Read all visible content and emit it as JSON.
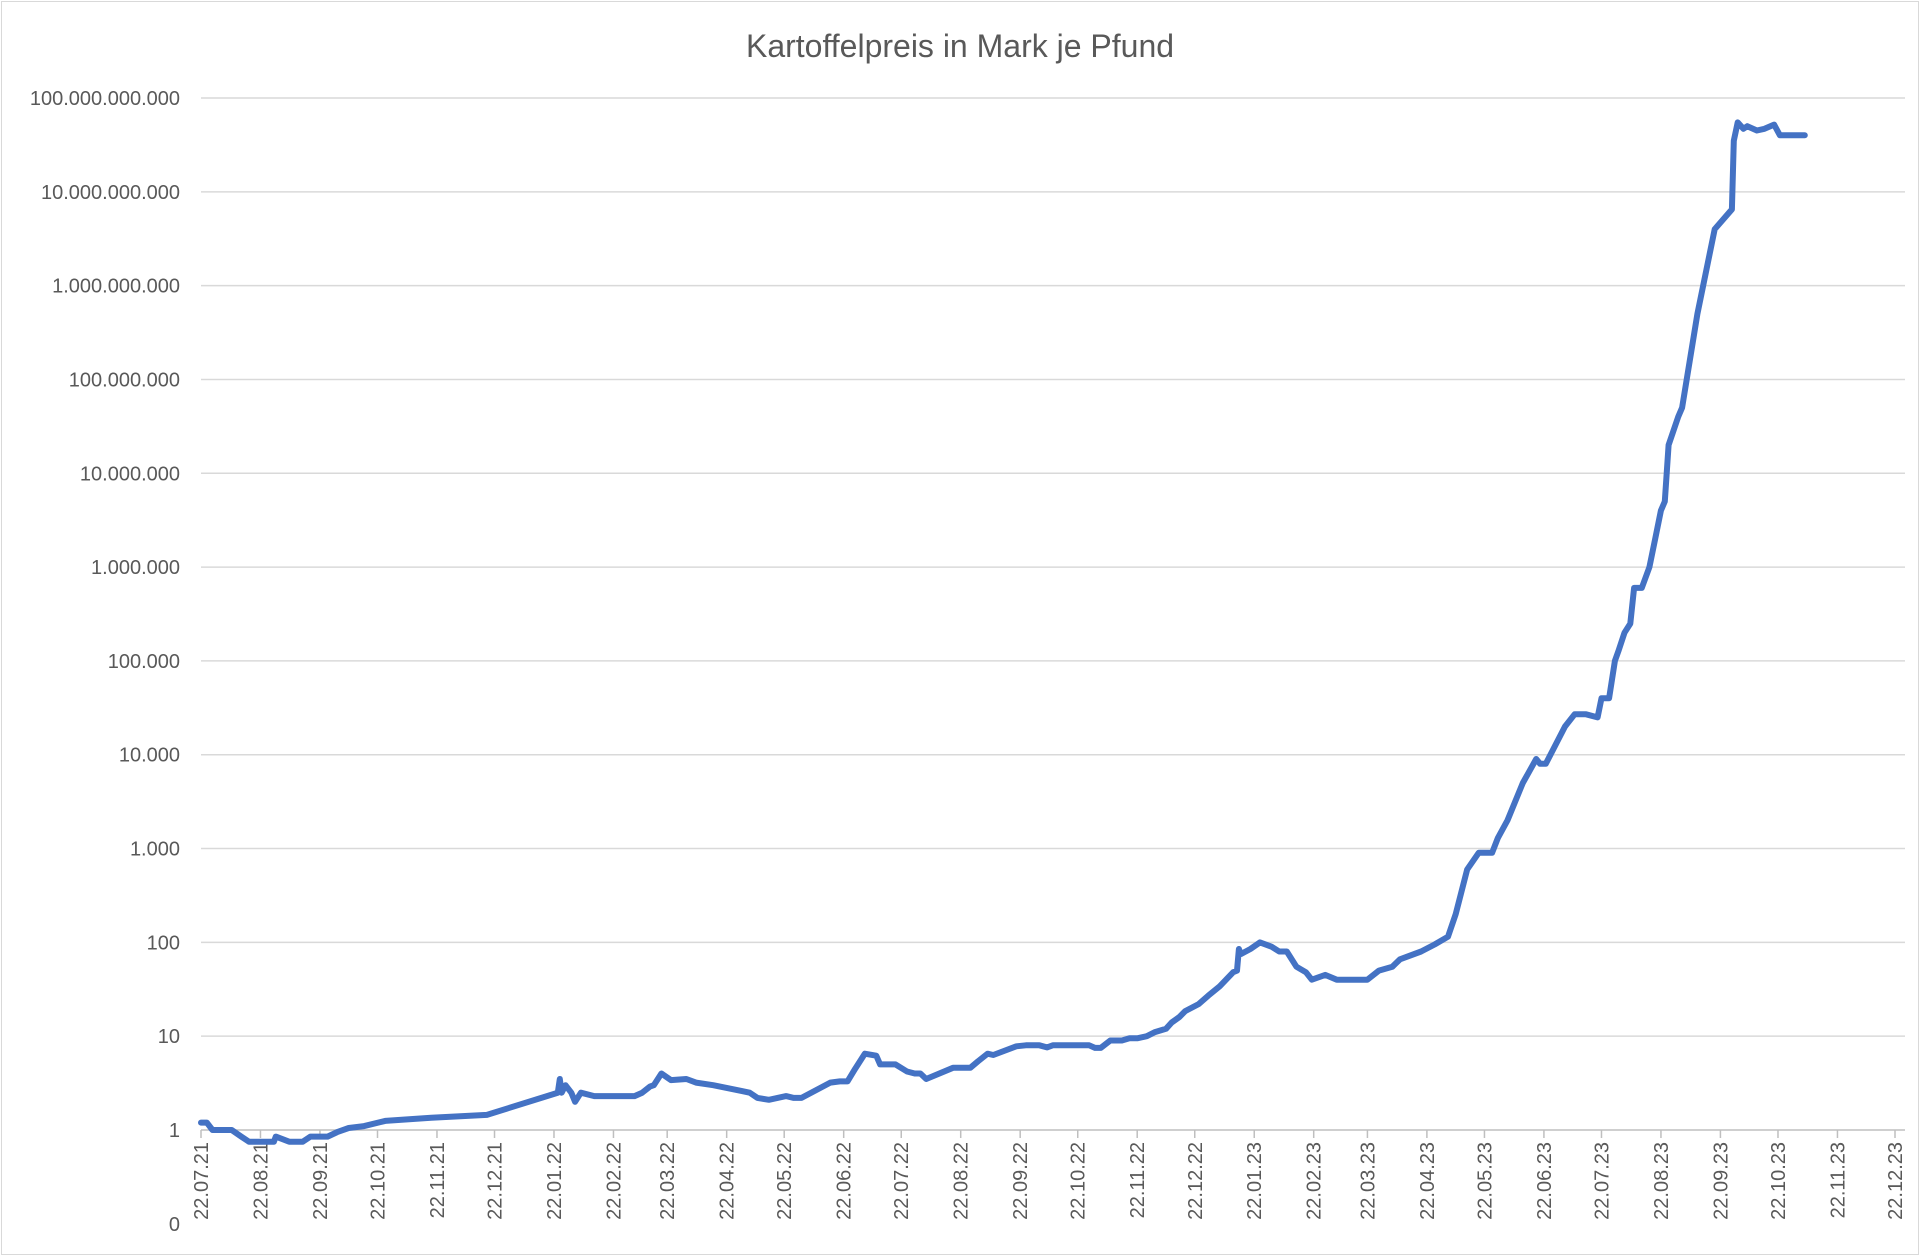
{
  "chart_data": {
    "type": "line",
    "title": "Kartoffelpreis in Mark je Pfund",
    "xlabel": "",
    "ylabel": "",
    "y_scale": "log",
    "ylim": [
      1,
      100000000000
    ],
    "grid": true,
    "legend": "none",
    "colors": {
      "line": "#4472C4",
      "grid": "#D9D9D9",
      "text": "#595959"
    },
    "y_tick_labels": [
      "0",
      "1",
      "10",
      "100",
      "1.000",
      "10.000",
      "100.000",
      "1.000.000",
      "10.000.000",
      "100.000.000",
      "1.000.000.000",
      "10.000.000.000",
      "100.000.000.000"
    ],
    "y_tick_values": [
      null,
      1,
      10,
      100,
      1000,
      10000,
      100000,
      1000000,
      10000000,
      100000000,
      1000000000,
      10000000000,
      100000000000
    ],
    "x_tick_labels": [
      "22.07.21",
      "22.08.21",
      "22.09.21",
      "22.10.21",
      "22.11.21",
      "22.12.21",
      "22.01.22",
      "22.02.22",
      "22.03.22",
      "22.04.22",
      "22.05.22",
      "22.06.22",
      "22.07.22",
      "22.08.22",
      "22.09.22",
      "22.10.22",
      "22.11.22",
      "22.12.22",
      "22.01.23",
      "22.02.23",
      "22.03.23",
      "22.04.23",
      "22.05.23",
      "22.06.23",
      "22.07.23",
      "22.08.23",
      "22.09.23",
      "22.10.23",
      "22.11.23",
      "22.12.23"
    ],
    "series": [
      {
        "points": [
          [
            "22.07.21",
            1.2
          ],
          [
            "25.07.21",
            1.2
          ],
          [
            "28.07.21",
            1.0
          ],
          [
            "07.08.21",
            1.0
          ],
          [
            "12.08.21",
            0.85
          ],
          [
            "16.08.21",
            0.75
          ],
          [
            "20.08.21",
            0.75
          ],
          [
            "25.08.21",
            0.75
          ],
          [
            "29.08.21",
            0.75
          ],
          [
            "30.08.21",
            0.85
          ],
          [
            "06.09.21",
            0.75
          ],
          [
            "13.09.21",
            0.75
          ],
          [
            "17.09.21",
            0.85
          ],
          [
            "26.09.21",
            0.85
          ],
          [
            "01.10.21",
            0.95
          ],
          [
            "07.10.21",
            1.05
          ],
          [
            "15.10.21",
            1.1
          ],
          [
            "26.10.21",
            1.25
          ],
          [
            "19.11.21",
            1.35
          ],
          [
            "18.12.21",
            1.45
          ],
          [
            "24.01.22",
            2.5
          ],
          [
            "25.01.22",
            3.5
          ],
          [
            "26.01.22",
            2.5
          ],
          [
            "28.01.22",
            3.0
          ],
          [
            "31.01.22",
            2.5
          ],
          [
            "02.02.22",
            2.0
          ],
          [
            "05.02.22",
            2.5
          ],
          [
            "12.02.22",
            2.3
          ],
          [
            "19.02.22",
            2.3
          ],
          [
            "05.03.22",
            2.3
          ],
          [
            "09.03.22",
            2.5
          ],
          [
            "13.03.22",
            2.9
          ],
          [
            "15.03.22",
            3.0
          ],
          [
            "19.03.22",
            4.0
          ],
          [
            "24.03.22",
            3.4
          ],
          [
            "01.04.22",
            3.5
          ],
          [
            "06.04.22",
            3.2
          ],
          [
            "15.04.22",
            3.0
          ],
          [
            "30.04.22",
            2.6
          ],
          [
            "04.05.22",
            2.5
          ],
          [
            "08.05.22",
            2.2
          ],
          [
            "14.05.22",
            2.1
          ],
          [
            "23.05.22",
            2.3
          ],
          [
            "27.05.22",
            2.2
          ],
          [
            "31.05.22",
            2.2
          ],
          [
            "15.06.22",
            3.2
          ],
          [
            "20.06.22",
            3.3
          ],
          [
            "24.06.22",
            3.3
          ],
          [
            "28.06.22",
            4.5
          ],
          [
            "03.07.22",
            6.5
          ],
          [
            "09.07.22",
            6.2
          ],
          [
            "11.07.22",
            5.0
          ],
          [
            "19.07.22",
            5.0
          ],
          [
            "25.07.22",
            4.2
          ],
          [
            "29.07.22",
            4.0
          ],
          [
            "01.08.22",
            4.0
          ],
          [
            "04.08.22",
            3.5
          ],
          [
            "18.08.22",
            4.6
          ],
          [
            "27.08.22",
            4.6
          ],
          [
            "31.08.22",
            5.4
          ],
          [
            "05.09.22",
            6.5
          ],
          [
            "08.09.22",
            6.3
          ],
          [
            "20.09.22",
            7.8
          ],
          [
            "25.09.22",
            8.0
          ],
          [
            "28.09.22",
            8.0
          ],
          [
            "02.10.22",
            8.0
          ],
          [
            "06.10.22",
            7.6
          ],
          [
            "09.10.22",
            8.0
          ],
          [
            "28.10.22",
            8.0
          ],
          [
            "31.10.22",
            7.5
          ],
          [
            "03.11.22",
            7.5
          ],
          [
            "08.11.22",
            9.0
          ],
          [
            "14.11.22",
            9.0
          ],
          [
            "18.11.22",
            9.5
          ],
          [
            "22.11.22",
            9.5
          ],
          [
            "27.11.22",
            10.0
          ],
          [
            "01.12.22",
            11.0
          ],
          [
            "07.12.22",
            12.0
          ],
          [
            "10.12.22",
            14.0
          ],
          [
            "14.12.22",
            16.0
          ],
          [
            "17.12.22",
            18.5
          ],
          [
            "24.12.22",
            22.0
          ],
          [
            "29.12.22",
            27.0
          ],
          [
            "04.01.23",
            34.0
          ],
          [
            "11.01.23",
            48.0
          ],
          [
            "13.01.23",
            50.0
          ],
          [
            "14.01.23",
            85.0
          ],
          [
            "15.01.23",
            75.0
          ],
          [
            "20.01.23",
            85.0
          ],
          [
            "25.01.23",
            100.0
          ],
          [
            "31.01.23",
            90.0
          ],
          [
            "04.02.23",
            80.0
          ],
          [
            "08.02.23",
            80.0
          ],
          [
            "13.02.23",
            55.0
          ],
          [
            "18.02.23",
            48.0
          ],
          [
            "21.02.23",
            40.0
          ],
          [
            "28.02.23",
            45.0
          ],
          [
            "06.03.23",
            40.0
          ],
          [
            "22.03.23",
            40.0
          ],
          [
            "28.03.23",
            50.0
          ],
          [
            "04.04.23",
            55.0
          ],
          [
            "08.04.23",
            66.0
          ],
          [
            "19.04.23",
            80.0
          ],
          [
            "26.04.23",
            95.0
          ],
          [
            "03.05.23",
            115.0
          ],
          [
            "07.05.23",
            200.0
          ],
          [
            "13.05.23",
            600.0
          ],
          [
            "19.05.23",
            900.0
          ],
          [
            "23.05.23",
            900.0
          ],
          [
            "26.05.23",
            900.0
          ],
          [
            "29.05.23",
            1300.0
          ],
          [
            "03.06.23",
            2000.0
          ],
          [
            "11.06.23",
            5000.0
          ],
          [
            "18.06.23",
            9000.0
          ],
          [
            "20.06.23",
            8000.0
          ],
          [
            "23.06.23",
            8000.0
          ],
          [
            "03.07.23",
            20000.0
          ],
          [
            "08.07.23",
            27000.0
          ],
          [
            "11.07.23",
            27000.0
          ],
          [
            "14.07.23",
            27000.0
          ],
          [
            "20.07.23",
            25000.0
          ],
          [
            "22.07.23",
            40000.0
          ],
          [
            "26.07.23",
            40000.0
          ],
          [
            "29.07.23",
            100000.0
          ],
          [
            "31.07.23",
            130000.0
          ],
          [
            "03.08.23",
            200000.0
          ],
          [
            "06.08.23",
            250000.0
          ],
          [
            "08.08.23",
            600000.0
          ],
          [
            "12.08.23",
            600000.0
          ],
          [
            "16.08.23",
            1000000.0
          ],
          [
            "19.08.23",
            2000000.0
          ],
          [
            "22.08.23",
            4000000.0
          ],
          [
            "24.08.23",
            5000000.0
          ],
          [
            "26.08.23",
            20000000.0
          ],
          [
            "31.08.23",
            40000000.0
          ],
          [
            "02.09.23",
            50000000.0
          ],
          [
            "10.09.23",
            500000000.0
          ],
          [
            "19.09.23",
            4000000000.0
          ],
          [
            "28.09.23",
            6500000000.0
          ],
          [
            "29.09.23",
            35000000000.0
          ],
          [
            "01.10.23",
            55000000000.0
          ],
          [
            "04.10.23",
            47000000000.0
          ],
          [
            "06.10.23",
            50000000000.0
          ],
          [
            "11.10.23",
            45000000000.0
          ],
          [
            "15.10.23",
            47000000000.0
          ],
          [
            "20.10.23",
            52000000000.0
          ],
          [
            "23.10.23",
            40000000000.0
          ],
          [
            "01.11.23",
            40000000000.0
          ],
          [
            "05.11.23",
            40000000000.0
          ]
        ]
      }
    ]
  }
}
